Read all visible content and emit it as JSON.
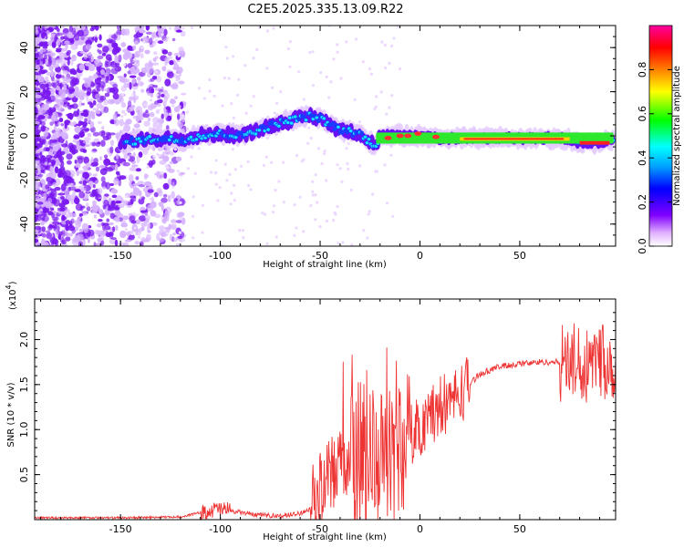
{
  "title": "C2E5.2025.335.13.09.R22",
  "chart_data": [
    {
      "type": "heatmap",
      "name": "spectrogram",
      "xlabel": "Height of straight line (km)",
      "ylabel": "Frequency (Hz)",
      "xlim": [
        -193,
        98
      ],
      "ylim": [
        -50,
        50
      ],
      "xticks": [
        -150,
        -100,
        -50,
        0,
        50
      ],
      "xtick_labels": [
        "-150",
        "-100",
        "-50",
        "0",
        "50"
      ],
      "yticks": [
        -40,
        -20,
        0,
        20,
        40
      ],
      "ytick_labels": [
        "-40",
        "-20",
        "0",
        "20",
        "40"
      ],
      "colorbar": {
        "label": "Normalized spectral amplitude",
        "range": [
          0,
          1
        ],
        "ticks": [
          0.0,
          0.2,
          0.4,
          0.6,
          0.8
        ],
        "tick_labels": [
          "0.0",
          "0.2",
          "0.4",
          "0.6",
          "0.8"
        ],
        "colormap": [
          "#ffffff",
          "#e0b0ff",
          "#8000ff",
          "#0000ff",
          "#00a0ff",
          "#00ffff",
          "#00ff00",
          "#ffff00",
          "#ff8000",
          "#ff0000",
          "#ff00a0"
        ]
      },
      "ridge": {
        "description": "main signal trace frequency (Hz) vs height",
        "x": [
          -148,
          -140,
          -130,
          -120,
          -110,
          -100,
          -90,
          -80,
          -70,
          -60,
          -55,
          -50,
          -45,
          -40,
          -35,
          -30,
          -25,
          -22,
          -20,
          -10,
          0,
          10,
          20,
          30,
          40,
          50,
          60,
          70,
          80,
          90,
          97
        ],
        "y": [
          -3,
          -2,
          -1,
          -2,
          0,
          1,
          0,
          3,
          6,
          8,
          9,
          8,
          5,
          3,
          2,
          1,
          -3,
          -4,
          0,
          0,
          0,
          -1,
          -1,
          -1,
          -1,
          -1,
          -1,
          -1,
          -3,
          -3,
          -2
        ]
      }
    },
    {
      "type": "line",
      "name": "snr",
      "xlabel": "Height of straight line (km)",
      "ylabel": "SNR (10 * v/v)",
      "y_multiplier_label": "(x10",
      "y_multiplier_exp": "4",
      "y_multiplier_close": ")",
      "xlim": [
        -193,
        98
      ],
      "ylim": [
        0,
        2.45
      ],
      "xticks": [
        -150,
        -100,
        -50,
        0,
        50
      ],
      "xtick_labels": [
        "-150",
        "-100",
        "-50",
        "0",
        "50"
      ],
      "yticks": [
        0.5,
        1.0,
        1.5,
        2.0
      ],
      "ytick_labels": [
        "0.5",
        "1.0",
        "1.5",
        "2.0"
      ],
      "color": "#ee3333",
      "envelope": {
        "description": "approximate trend of the noisy SNR trace (units of 1e4)",
        "x": [
          -193,
          -150,
          -120,
          -110,
          -100,
          -90,
          -80,
          -70,
          -60,
          -55,
          -50,
          -40,
          -30,
          -20,
          -10,
          0,
          10,
          20,
          30,
          40,
          50,
          60,
          70,
          80,
          90,
          98
        ],
        "y": [
          0.02,
          0.02,
          0.03,
          0.08,
          0.12,
          0.08,
          0.05,
          0.04,
          0.07,
          0.12,
          0.3,
          0.6,
          0.75,
          0.65,
          0.8,
          1.05,
          1.25,
          1.4,
          1.62,
          1.7,
          1.73,
          1.75,
          1.75,
          1.75,
          1.75,
          1.75
        ]
      }
    }
  ]
}
